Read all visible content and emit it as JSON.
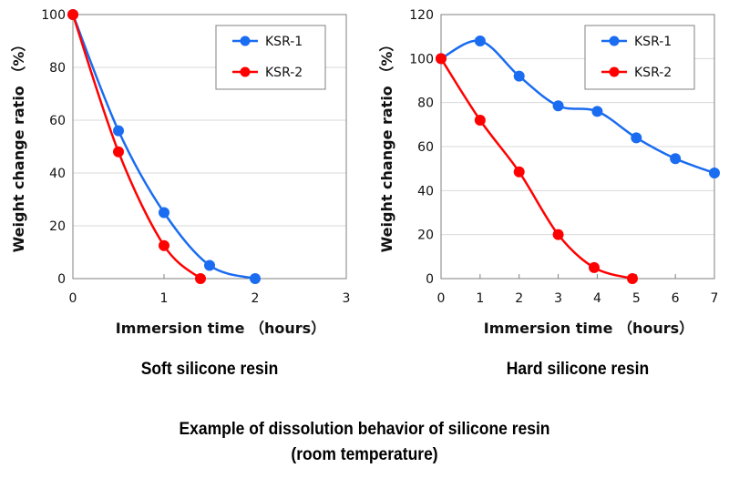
{
  "caption": {
    "line1": "Example of dissolution behavior of silicone resin",
    "line2": "(room temperature)"
  },
  "colors": {
    "KSR-1": "#1a6cf0",
    "KSR-2": "#ff0000",
    "grid": "#d9d9d9",
    "axis": "#808080"
  },
  "chart_data": [
    {
      "type": "line",
      "title": "Soft silicone resin",
      "xlabel": "Immersion time （hours）",
      "ylabel": "Weight change ratio （%）",
      "xlim": [
        0,
        3
      ],
      "ylim": [
        0,
        100
      ],
      "xticks": [
        0,
        1,
        2,
        3
      ],
      "yticks": [
        0,
        20,
        40,
        60,
        80,
        100
      ],
      "grid": "horizontal",
      "legend": "top-right",
      "series": [
        {
          "name": "KSR-1",
          "x": [
            0,
            0.5,
            1,
            1.5,
            2
          ],
          "y": [
            100,
            56,
            25,
            5,
            0
          ]
        },
        {
          "name": "KSR-2",
          "x": [
            0,
            0.5,
            1,
            1.4
          ],
          "y": [
            100,
            48,
            12.5,
            0
          ]
        }
      ]
    },
    {
      "type": "line",
      "title": "Hard silicone resin",
      "xlabel": "Immersion time （hours）",
      "ylabel": "Weight change ratio （%）",
      "xlim": [
        0,
        7
      ],
      "ylim": [
        0,
        120
      ],
      "xticks": [
        0,
        1,
        2,
        3,
        4,
        5,
        6,
        7
      ],
      "yticks": [
        0,
        20,
        40,
        60,
        80,
        100,
        120
      ],
      "grid": "horizontal",
      "legend": "top-right",
      "series": [
        {
          "name": "KSR-1",
          "x": [
            0,
            1,
            2,
            3,
            4,
            5,
            6,
            7
          ],
          "y": [
            100,
            108,
            92,
            78.5,
            76,
            64,
            54.5,
            48
          ]
        },
        {
          "name": "KSR-2",
          "x": [
            0,
            1,
            2,
            3,
            3.92,
            4.9
          ],
          "y": [
            100,
            72,
            48.5,
            20,
            5,
            0
          ]
        }
      ]
    }
  ]
}
